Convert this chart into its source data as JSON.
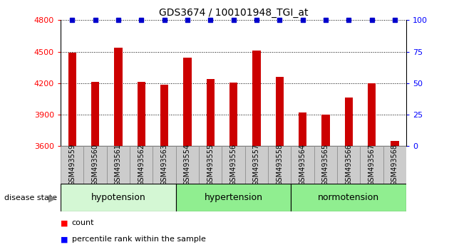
{
  "title": "GDS3674 / 100101948_TGI_at",
  "samples": [
    "GSM493559",
    "GSM493560",
    "GSM493561",
    "GSM493562",
    "GSM493563",
    "GSM493554",
    "GSM493555",
    "GSM493556",
    "GSM493557",
    "GSM493558",
    "GSM493564",
    "GSM493565",
    "GSM493566",
    "GSM493567",
    "GSM493568"
  ],
  "counts": [
    4490,
    4210,
    4540,
    4210,
    4185,
    4440,
    4240,
    4205,
    4510,
    4260,
    3920,
    3900,
    4060,
    4200,
    3650
  ],
  "groups": [
    {
      "label": "hypotension",
      "start": 0,
      "end": 5
    },
    {
      "label": "hypertension",
      "start": 5,
      "end": 10
    },
    {
      "label": "normotension",
      "start": 10,
      "end": 15
    }
  ],
  "group_colors": [
    "#c8f0c8",
    "#90ee90",
    "#90ee90"
  ],
  "ylim_left": [
    3600,
    4800
  ],
  "ylim_right": [
    0,
    100
  ],
  "yticks_left": [
    3600,
    3900,
    4200,
    4500,
    4800
  ],
  "yticks_right": [
    0,
    25,
    50,
    75,
    100
  ],
  "bar_color": "#cc0000",
  "percentile_color": "#0000cc",
  "bar_width": 0.35,
  "grid_dotted_yticks": [
    3900,
    4200,
    4500,
    4800
  ],
  "disease_state_label": "disease state",
  "legend_count": "count",
  "legend_percentile": "percentile rank within the sample",
  "title_fontsize": 10,
  "axis_fontsize": 8,
  "tick_fontsize": 7
}
